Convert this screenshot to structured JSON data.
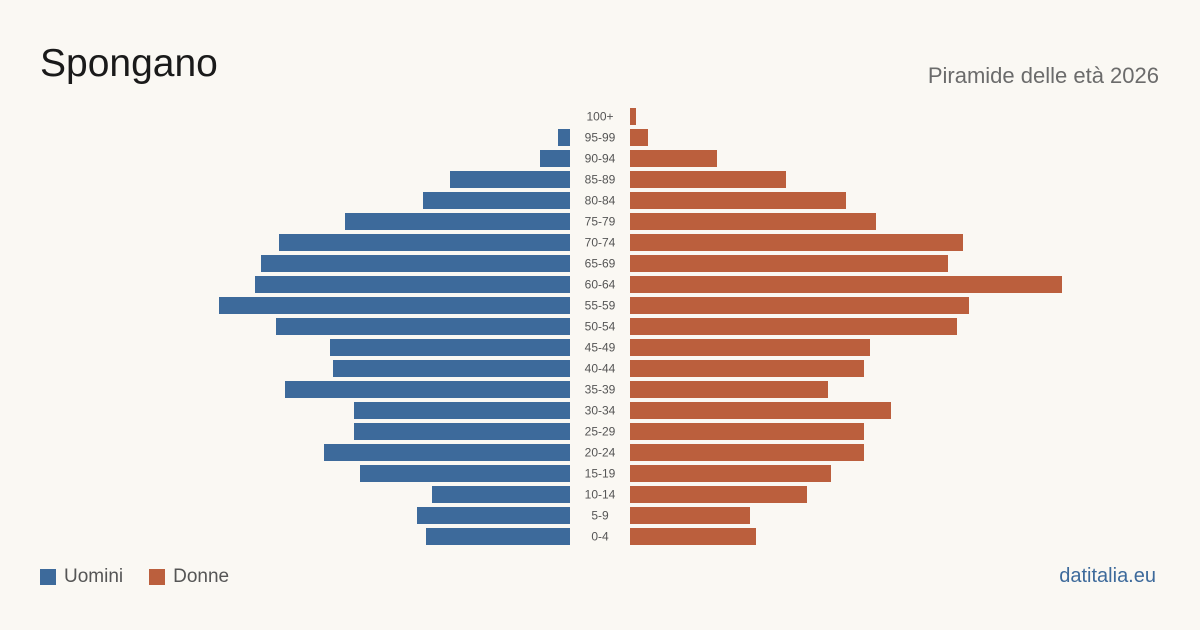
{
  "header": {
    "title": "Spongano",
    "subtitle": "Piramide delle età 2026"
  },
  "legend": {
    "male_label": "Uomini",
    "female_label": "Donne"
  },
  "footer": {
    "source": "datitalia.eu"
  },
  "colors": {
    "male": "#3d6a9b",
    "female": "#bb5f3d",
    "background": "#faf8f3",
    "source_link": "#3d6a9b"
  },
  "chart_data": {
    "type": "bar",
    "orientation": "horizontal-pyramid",
    "categories": [
      "100+",
      "95-99",
      "90-94",
      "85-89",
      "80-84",
      "75-79",
      "70-74",
      "65-69",
      "60-64",
      "55-59",
      "50-54",
      "45-49",
      "40-44",
      "35-39",
      "30-34",
      "25-29",
      "20-24",
      "15-19",
      "10-14",
      "5-9",
      "0-4"
    ],
    "series": [
      {
        "name": "Uomini",
        "values": [
          0,
          4,
          10,
          40,
          49,
          75,
          97,
          103,
          105,
          117,
          98,
          80,
          79,
          95,
          72,
          72,
          82,
          70,
          46,
          51,
          48
        ]
      },
      {
        "name": "Donne",
        "values": [
          2,
          6,
          29,
          52,
          72,
          82,
          111,
          106,
          144,
          113,
          109,
          80,
          78,
          66,
          87,
          78,
          78,
          67,
          59,
          40,
          42
        ]
      }
    ],
    "grid": false,
    "legend_position": "bottom-left"
  }
}
